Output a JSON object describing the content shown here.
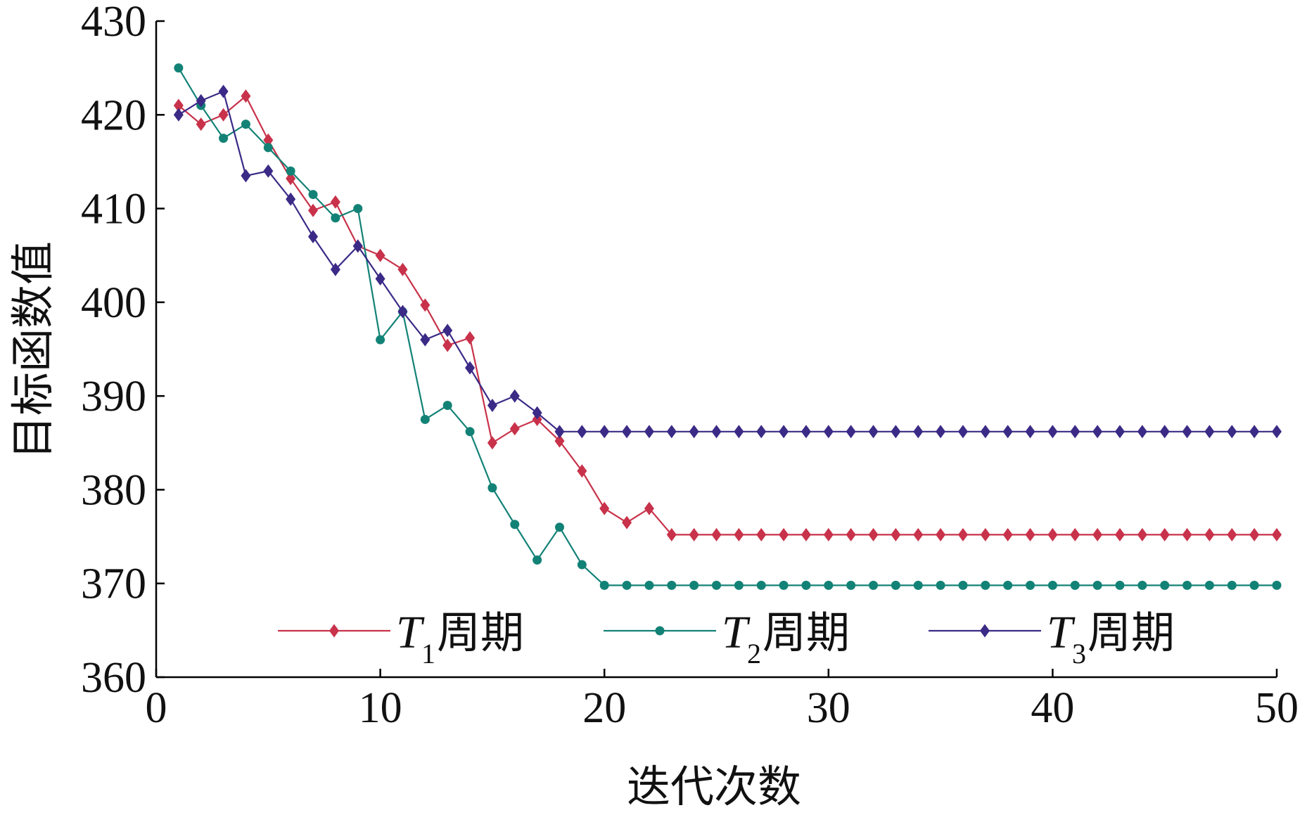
{
  "chart_data": {
    "type": "line",
    "title": "",
    "xlabel": "迭代次数",
    "ylabel": "目标函数值",
    "xlim": [
      0,
      50
    ],
    "ylim": [
      360,
      430
    ],
    "xticks": [
      "0",
      "10",
      "20",
      "30",
      "40",
      "50"
    ],
    "yticks": [
      "360",
      "370",
      "380",
      "390",
      "400",
      "410",
      "420",
      "430"
    ],
    "grid": false,
    "legend_position": "bottom",
    "x": [
      1,
      2,
      3,
      4,
      5,
      6,
      7,
      8,
      9,
      10,
      11,
      12,
      13,
      14,
      15,
      16,
      17,
      18,
      19,
      20,
      21,
      22,
      23,
      24,
      25,
      26,
      27,
      28,
      29,
      30,
      31,
      32,
      33,
      34,
      35,
      36,
      37,
      38,
      39,
      40,
      41,
      42,
      43,
      44,
      45,
      46,
      47,
      48,
      49,
      50
    ],
    "series": [
      {
        "name_main": "T",
        "name_sub": "1",
        "name_suffix": "周期",
        "color": "#c8324a",
        "marker": "diamond",
        "values": [
          421,
          419,
          420,
          422,
          417.3,
          413.2,
          409.8,
          410.7,
          406,
          405,
          403.5,
          399.7,
          395.4,
          396.2,
          385,
          386.5,
          387.5,
          385.2,
          382,
          378,
          376.5,
          378,
          375.2,
          375.2,
          375.2,
          375.2,
          375.2,
          375.2,
          375.2,
          375.2,
          375.2,
          375.2,
          375.2,
          375.2,
          375.2,
          375.2,
          375.2,
          375.2,
          375.2,
          375.2,
          375.2,
          375.2,
          375.2,
          375.2,
          375.2,
          375.2,
          375.2,
          375.2,
          375.2,
          375.2
        ]
      },
      {
        "name_main": "T",
        "name_sub": "2",
        "name_suffix": "周期",
        "color": "#138276",
        "marker": "circle",
        "values": [
          425,
          421,
          417.5,
          419,
          416.5,
          414,
          411.5,
          409,
          410,
          396,
          399,
          387.5,
          389,
          386.2,
          380.2,
          376.3,
          372.5,
          376,
          372,
          369.8,
          369.8,
          369.8,
          369.8,
          369.8,
          369.8,
          369.8,
          369.8,
          369.8,
          369.8,
          369.8,
          369.8,
          369.8,
          369.8,
          369.8,
          369.8,
          369.8,
          369.8,
          369.8,
          369.8,
          369.8,
          369.8,
          369.8,
          369.8,
          369.8,
          369.8,
          369.8,
          369.8,
          369.8,
          369.8,
          369.8
        ]
      },
      {
        "name_main": "T",
        "name_sub": "3",
        "name_suffix": "周期",
        "color": "#3b2a86",
        "marker": "diamond",
        "values": [
          420,
          421.5,
          422.5,
          413.5,
          414,
          411,
          407,
          403.5,
          406,
          402.5,
          399,
          396,
          397,
          393,
          389,
          390,
          388.2,
          386.2,
          386.2,
          386.2,
          386.2,
          386.2,
          386.2,
          386.2,
          386.2,
          386.2,
          386.2,
          386.2,
          386.2,
          386.2,
          386.2,
          386.2,
          386.2,
          386.2,
          386.2,
          386.2,
          386.2,
          386.2,
          386.2,
          386.2,
          386.2,
          386.2,
          386.2,
          386.2,
          386.2,
          386.2,
          386.2,
          386.2,
          386.2,
          386.2
        ]
      }
    ]
  }
}
